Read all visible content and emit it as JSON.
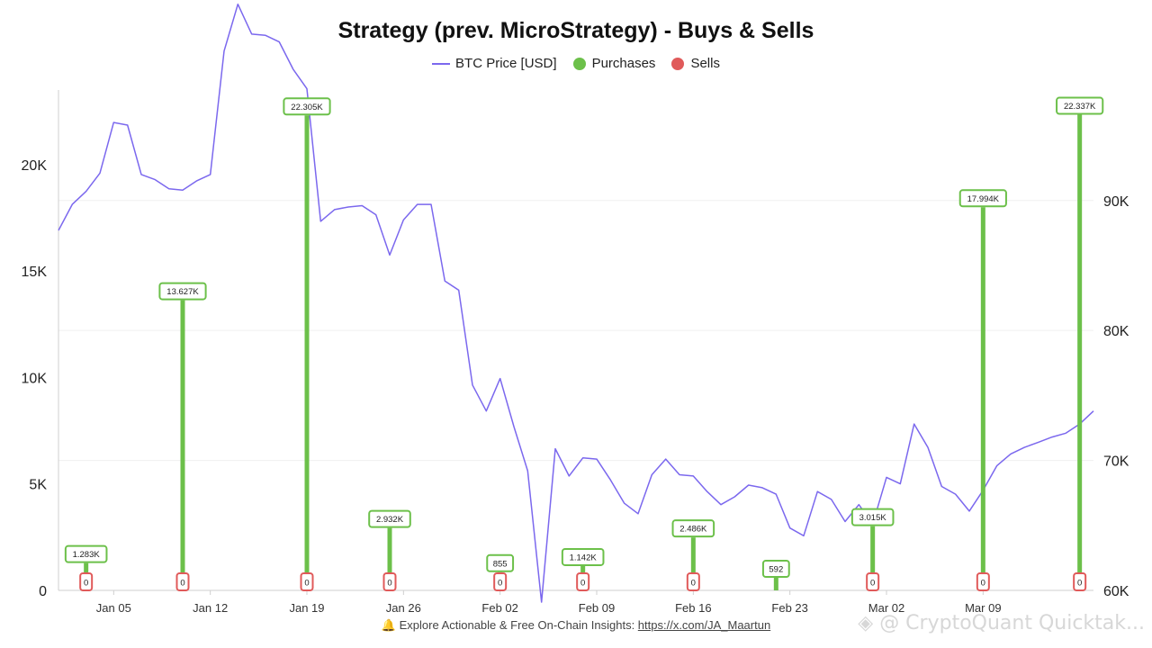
{
  "chart_data": {
    "type": "bar",
    "title": "Strategy (prev. MicroStrategy) - Buys & Sells",
    "legend": {
      "placement": "top-center",
      "grid": true
    },
    "colors": {
      "price": "#7b68ee",
      "purchases": "#6cc04a",
      "sells": "#e05a5a"
    },
    "x_axis": {
      "ticks": [
        {
          "label": "Jan 05",
          "date": "2025-01-05"
        },
        {
          "label": "Jan 12",
          "date": "2025-01-12"
        },
        {
          "label": "Jan 19",
          "date": "2025-01-19"
        },
        {
          "label": "Jan 26",
          "date": "2025-01-26"
        },
        {
          "label": "Feb 02",
          "date": "2025-02-02"
        },
        {
          "label": "Feb 09",
          "date": "2025-02-09"
        },
        {
          "label": "Feb 16",
          "date": "2025-02-16"
        },
        {
          "label": "Feb 23",
          "date": "2025-02-23"
        },
        {
          "label": "Mar 02",
          "date": "2025-03-02"
        },
        {
          "label": "Mar 09",
          "date": "2025-03-09"
        }
      ]
    },
    "y_left": {
      "ylim": [
        0,
        23500
      ],
      "ticks": [
        0,
        5000,
        10000,
        15000,
        20000
      ],
      "tick_labels": [
        "0",
        "5K",
        "10K",
        "15K",
        "20K"
      ]
    },
    "y_right": {
      "ylim": [
        60000,
        98500
      ],
      "ticks": [
        60000,
        70000,
        80000,
        90000
      ],
      "tick_labels": [
        "60K",
        "70K",
        "80K",
        "90K"
      ]
    },
    "series": [
      {
        "name": "BTC Price [USD]",
        "type": "line",
        "axis": "right",
        "x": [
          "2025-01-01",
          "2025-01-02",
          "2025-01-03",
          "2025-01-04",
          "2025-01-05",
          "2025-01-06",
          "2025-01-07",
          "2025-01-08",
          "2025-01-09",
          "2025-01-10",
          "2025-01-11",
          "2025-01-12",
          "2025-01-13",
          "2025-01-14",
          "2025-01-15",
          "2025-01-16",
          "2025-01-17",
          "2025-01-18",
          "2025-01-19",
          "2025-01-20",
          "2025-01-21",
          "2025-01-22",
          "2025-01-23",
          "2025-01-24",
          "2025-01-25",
          "2025-01-26",
          "2025-01-27",
          "2025-01-28",
          "2025-01-29",
          "2025-01-30",
          "2025-01-31",
          "2025-02-01",
          "2025-02-02",
          "2025-02-03",
          "2025-02-04",
          "2025-02-05",
          "2025-02-06",
          "2025-02-07",
          "2025-02-08",
          "2025-02-09",
          "2025-02-10",
          "2025-02-11",
          "2025-02-12",
          "2025-02-13",
          "2025-02-14",
          "2025-02-15",
          "2025-02-16",
          "2025-02-17",
          "2025-02-18",
          "2025-02-19",
          "2025-02-20",
          "2025-02-21",
          "2025-02-22",
          "2025-02-23",
          "2025-02-24",
          "2025-02-25",
          "2025-02-26",
          "2025-02-27",
          "2025-02-28",
          "2025-03-01",
          "2025-03-02",
          "2025-03-03",
          "2025-03-04",
          "2025-03-05",
          "2025-03-06",
          "2025-03-07",
          "2025-03-08",
          "2025-03-09",
          "2025-03-10",
          "2025-03-11",
          "2025-03-12",
          "2025-03-13",
          "2025-03-14",
          "2025-03-15",
          "2025-03-16",
          "2025-03-17"
        ],
        "values": [
          87700,
          89700,
          90700,
          92100,
          96000,
          95800,
          92000,
          91600,
          90900,
          90800,
          91500,
          92000,
          101500,
          105100,
          102800,
          102700,
          102200,
          100100,
          98600,
          88400,
          89300,
          89500,
          89600,
          88900,
          85800,
          88500,
          89700,
          89700,
          83800,
          83100,
          75800,
          73800,
          76300,
          72600,
          69200,
          59100,
          70900,
          68800,
          70200,
          70100,
          68500,
          66700,
          65900,
          68900,
          70100,
          68900,
          68800,
          67600,
          66600,
          67200,
          68100,
          67900,
          67400,
          64800,
          64200,
          67600,
          67000,
          65300,
          66600,
          65100,
          68700,
          68200,
          72800,
          71000,
          68000,
          67400,
          66100,
          67700,
          69600,
          70500,
          71000,
          71400,
          71800,
          72100,
          72800,
          73800
        ]
      },
      {
        "name": "Purchases",
        "type": "bar",
        "axis": "left",
        "x": [
          "2025-01-03",
          "2025-01-10",
          "2025-01-19",
          "2025-01-25",
          "2025-02-02",
          "2025-02-08",
          "2025-02-16",
          "2025-02-22",
          "2025-03-01",
          "2025-03-09",
          "2025-03-16"
        ],
        "values": [
          1283,
          13627,
          22305,
          2932,
          855,
          1142,
          2486,
          592,
          3015,
          17994,
          22337
        ],
        "labels": [
          "1.283K",
          "13.627K",
          "22.305K",
          "2.932K",
          "855",
          "1.142K",
          "2.486K",
          "592",
          "3.015K",
          "17.994K",
          "22.337K"
        ]
      },
      {
        "name": "Sells",
        "type": "bar",
        "axis": "left",
        "x": [
          "2025-01-03",
          "2025-01-10",
          "2025-01-19",
          "2025-01-25",
          "2025-02-02",
          "2025-02-08",
          "2025-02-16",
          "2025-03-01",
          "2025-03-09",
          "2025-03-16"
        ],
        "values": [
          0,
          0,
          0,
          0,
          0,
          0,
          0,
          0,
          0,
          0
        ],
        "labels": [
          "0",
          "0",
          "0",
          "0",
          "0",
          "0",
          "0",
          "0",
          "0",
          "0"
        ]
      }
    ]
  },
  "footer": {
    "icon": "bell-icon",
    "text": "Explore Actionable & Free On-Chain Insights: ",
    "link": "https://x.com/JA_Maartun"
  },
  "watermark": {
    "icon": "cryptoquant-logo-icon",
    "text": "@ CryptoQuant Quicktak..."
  }
}
